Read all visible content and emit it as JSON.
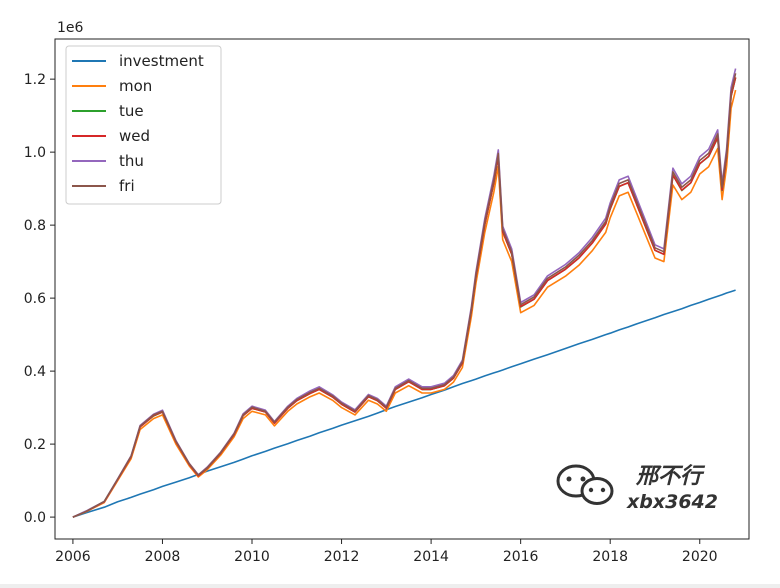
{
  "chart_data": {
    "type": "line",
    "title": "",
    "xlabel": "",
    "ylabel": "",
    "y_offset_label": "1e6",
    "xlim": [
      2005.6,
      2021.1
    ],
    "ylim": [
      -0.06,
      1.31
    ],
    "x_ticks": [
      2006,
      2008,
      2010,
      2012,
      2014,
      2016,
      2018,
      2020
    ],
    "x_tick_labels": [
      "2006",
      "2008",
      "2010",
      "2012",
      "2014",
      "2016",
      "2018",
      "2020"
    ],
    "y_ticks": [
      0.0,
      0.2,
      0.4,
      0.6,
      0.8,
      1.0,
      1.2
    ],
    "y_tick_labels": [
      "0.0",
      "0.2",
      "0.4",
      "0.6",
      "0.8",
      "1.0",
      "1.2"
    ],
    "grid": false,
    "legend_position": "top-left",
    "x": [
      2006.0,
      2006.3,
      2006.7,
      2007.0,
      2007.3,
      2007.5,
      2007.8,
      2008.0,
      2008.3,
      2008.6,
      2008.8,
      2009.0,
      2009.3,
      2009.6,
      2009.8,
      2010.0,
      2010.3,
      2010.5,
      2010.8,
      2011.0,
      2011.3,
      2011.5,
      2011.8,
      2012.0,
      2012.3,
      2012.6,
      2012.8,
      2013.0,
      2013.2,
      2013.5,
      2013.8,
      2014.0,
      2014.3,
      2014.5,
      2014.7,
      2014.9,
      2015.0,
      2015.2,
      2015.4,
      2015.5,
      2015.6,
      2015.8,
      2016.0,
      2016.3,
      2016.6,
      2017.0,
      2017.3,
      2017.6,
      2017.9,
      2018.0,
      2018.2,
      2018.4,
      2018.6,
      2018.8,
      2019.0,
      2019.2,
      2019.4,
      2019.6,
      2019.8,
      2020.0,
      2020.2,
      2020.4,
      2020.5,
      2020.6,
      2020.7,
      2020.8
    ],
    "series": [
      {
        "name": "investment",
        "color": "#1f77b4",
        "values": [
          0.0,
          0.012,
          0.027,
          0.042,
          0.054,
          0.063,
          0.075,
          0.084,
          0.096,
          0.108,
          0.117,
          0.126,
          0.138,
          0.15,
          0.159,
          0.168,
          0.18,
          0.189,
          0.201,
          0.21,
          0.222,
          0.231,
          0.243,
          0.252,
          0.264,
          0.276,
          0.285,
          0.294,
          0.303,
          0.315,
          0.327,
          0.336,
          0.348,
          0.357,
          0.366,
          0.374,
          0.378,
          0.387,
          0.395,
          0.399,
          0.403,
          0.412,
          0.42,
          0.433,
          0.445,
          0.462,
          0.475,
          0.487,
          0.5,
          0.504,
          0.513,
          0.521,
          0.53,
          0.538,
          0.546,
          0.555,
          0.563,
          0.571,
          0.58,
          0.588,
          0.597,
          0.605,
          0.609,
          0.614,
          0.618,
          0.622
        ]
      },
      {
        "name": "mon",
        "color": "#ff7f0e",
        "values": [
          0.0,
          0.015,
          0.04,
          0.1,
          0.16,
          0.24,
          0.27,
          0.28,
          0.2,
          0.14,
          0.11,
          0.13,
          0.17,
          0.22,
          0.27,
          0.29,
          0.28,
          0.25,
          0.29,
          0.31,
          0.33,
          0.34,
          0.32,
          0.3,
          0.28,
          0.32,
          0.31,
          0.29,
          0.34,
          0.36,
          0.34,
          0.34,
          0.35,
          0.37,
          0.41,
          0.55,
          0.64,
          0.78,
          0.89,
          0.96,
          0.76,
          0.7,
          0.56,
          0.58,
          0.63,
          0.66,
          0.69,
          0.73,
          0.78,
          0.82,
          0.88,
          0.89,
          0.83,
          0.77,
          0.71,
          0.7,
          0.91,
          0.87,
          0.89,
          0.94,
          0.96,
          1.01,
          0.87,
          0.96,
          1.12,
          1.17
        ]
      },
      {
        "name": "tue",
        "color": "#2ca02c",
        "values": [
          0.0,
          0.016,
          0.043,
          0.104,
          0.166,
          0.248,
          0.277,
          0.288,
          0.207,
          0.145,
          0.114,
          0.134,
          0.175,
          0.227,
          0.278,
          0.298,
          0.288,
          0.258,
          0.298,
          0.319,
          0.339,
          0.35,
          0.329,
          0.309,
          0.288,
          0.33,
          0.319,
          0.299,
          0.35,
          0.371,
          0.35,
          0.35,
          0.36,
          0.381,
          0.422,
          0.566,
          0.658,
          0.802,
          0.915,
          0.987,
          0.782,
          0.72,
          0.576,
          0.597,
          0.648,
          0.679,
          0.71,
          0.751,
          0.803,
          0.844,
          0.906,
          0.916,
          0.854,
          0.792,
          0.731,
          0.72,
          0.937,
          0.895,
          0.916,
          0.968,
          0.988,
          1.039,
          0.895,
          0.988,
          1.153,
          1.204
        ]
      },
      {
        "name": "wed",
        "color": "#d62728",
        "values": [
          0.0,
          0.016,
          0.042,
          0.103,
          0.165,
          0.247,
          0.278,
          0.288,
          0.206,
          0.144,
          0.113,
          0.134,
          0.175,
          0.226,
          0.278,
          0.298,
          0.288,
          0.257,
          0.298,
          0.319,
          0.339,
          0.35,
          0.329,
          0.309,
          0.288,
          0.33,
          0.319,
          0.298,
          0.35,
          0.371,
          0.35,
          0.35,
          0.36,
          0.381,
          0.422,
          0.566,
          0.658,
          0.802,
          0.916,
          0.987,
          0.782,
          0.721,
          0.577,
          0.597,
          0.648,
          0.679,
          0.71,
          0.751,
          0.803,
          0.845,
          0.906,
          0.916,
          0.854,
          0.793,
          0.731,
          0.72,
          0.937,
          0.896,
          0.916,
          0.968,
          0.989,
          1.04,
          0.896,
          0.989,
          1.154,
          1.205
        ]
      },
      {
        "name": "thu",
        "color": "#9467bd",
        "values": [
          0.0,
          0.017,
          0.043,
          0.105,
          0.168,
          0.251,
          0.282,
          0.293,
          0.21,
          0.147,
          0.116,
          0.137,
          0.178,
          0.23,
          0.283,
          0.304,
          0.293,
          0.262,
          0.304,
          0.325,
          0.346,
          0.357,
          0.335,
          0.315,
          0.294,
          0.336,
          0.325,
          0.304,
          0.357,
          0.378,
          0.357,
          0.357,
          0.367,
          0.388,
          0.43,
          0.577,
          0.671,
          0.818,
          0.934,
          1.006,
          0.797,
          0.735,
          0.588,
          0.609,
          0.661,
          0.692,
          0.724,
          0.766,
          0.819,
          0.861,
          0.924,
          0.934,
          0.871,
          0.809,
          0.746,
          0.735,
          0.956,
          0.913,
          0.934,
          0.987,
          1.008,
          1.061,
          0.914,
          1.009,
          1.177,
          1.229
        ]
      },
      {
        "name": "fri",
        "color": "#8c564b",
        "values": [
          0.0,
          0.016,
          0.043,
          0.104,
          0.167,
          0.249,
          0.28,
          0.29,
          0.208,
          0.146,
          0.115,
          0.135,
          0.177,
          0.228,
          0.28,
          0.301,
          0.29,
          0.26,
          0.301,
          0.322,
          0.342,
          0.353,
          0.332,
          0.312,
          0.291,
          0.333,
          0.322,
          0.301,
          0.353,
          0.374,
          0.353,
          0.353,
          0.363,
          0.384,
          0.426,
          0.571,
          0.664,
          0.81,
          0.924,
          0.996,
          0.789,
          0.727,
          0.582,
          0.603,
          0.654,
          0.685,
          0.717,
          0.758,
          0.81,
          0.852,
          0.914,
          0.924,
          0.862,
          0.8,
          0.738,
          0.727,
          0.946,
          0.904,
          0.924,
          0.977,
          0.997,
          1.05,
          0.904,
          0.998,
          1.164,
          1.216
        ]
      }
    ]
  },
  "watermark": {
    "line1": "邢不行",
    "line2": "xbx3642",
    "icon": "wechat-icon"
  }
}
